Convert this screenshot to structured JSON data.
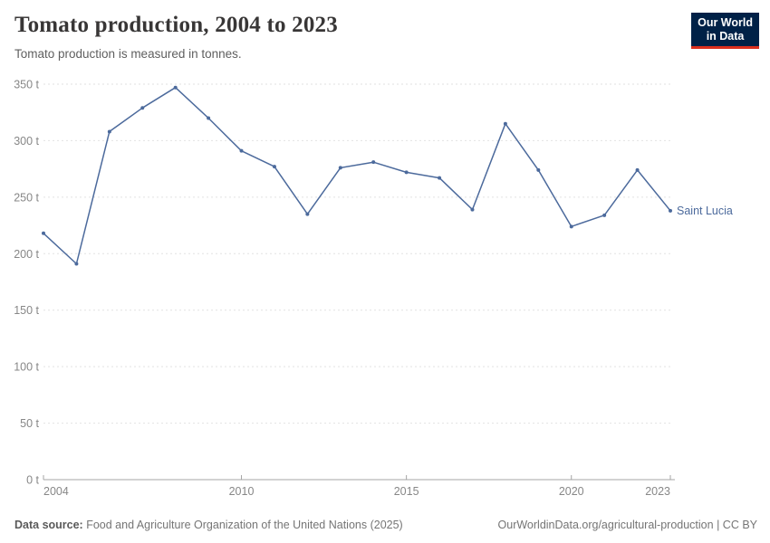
{
  "header": {
    "title": "Tomato production, 2004 to 2023",
    "subtitle": "Tomato production is measured in tonnes.",
    "logo_line1": "Our World",
    "logo_line2": "in Data"
  },
  "chart_data": {
    "type": "line",
    "title": "Tomato production, 2004 to 2023",
    "subtitle": "Tomato production is measured in tonnes.",
    "unit": "tonnes",
    "x": [
      2004,
      2005,
      2006,
      2007,
      2008,
      2009,
      2010,
      2011,
      2012,
      2013,
      2014,
      2015,
      2016,
      2017,
      2018,
      2019,
      2020,
      2021,
      2022,
      2023
    ],
    "series": [
      {
        "name": "Saint Lucia",
        "color": "#4c6a9c",
        "values": [
          218,
          191,
          308,
          329,
          347,
          320,
          291,
          277,
          235,
          276,
          281,
          272,
          267,
          239,
          315,
          274,
          224,
          234,
          274,
          238
        ]
      }
    ],
    "xlabel": "",
    "ylabel": "",
    "ylim": [
      0,
      350
    ],
    "ytick_step": 50,
    "ytick_suffix": " t",
    "xticks": [
      2004,
      2010,
      2015,
      2020,
      2023
    ],
    "grid": "horizontal-dashed",
    "legend_position": "end-of-line-label"
  },
  "footer": {
    "source_label": "Data source:",
    "source_text": " Food and Agriculture Organization of the United Nations (2025)",
    "url": "OurWorldinData.org/agricultural-production",
    "separator": " | ",
    "license": "CC BY"
  },
  "colors": {
    "accent": "#4c6a9c",
    "logo_bg": "#002147",
    "logo_red": "#dc2f1d",
    "grid": "#e2e2e2",
    "axis": "#a5a5a5",
    "axis_text": "#878787"
  }
}
